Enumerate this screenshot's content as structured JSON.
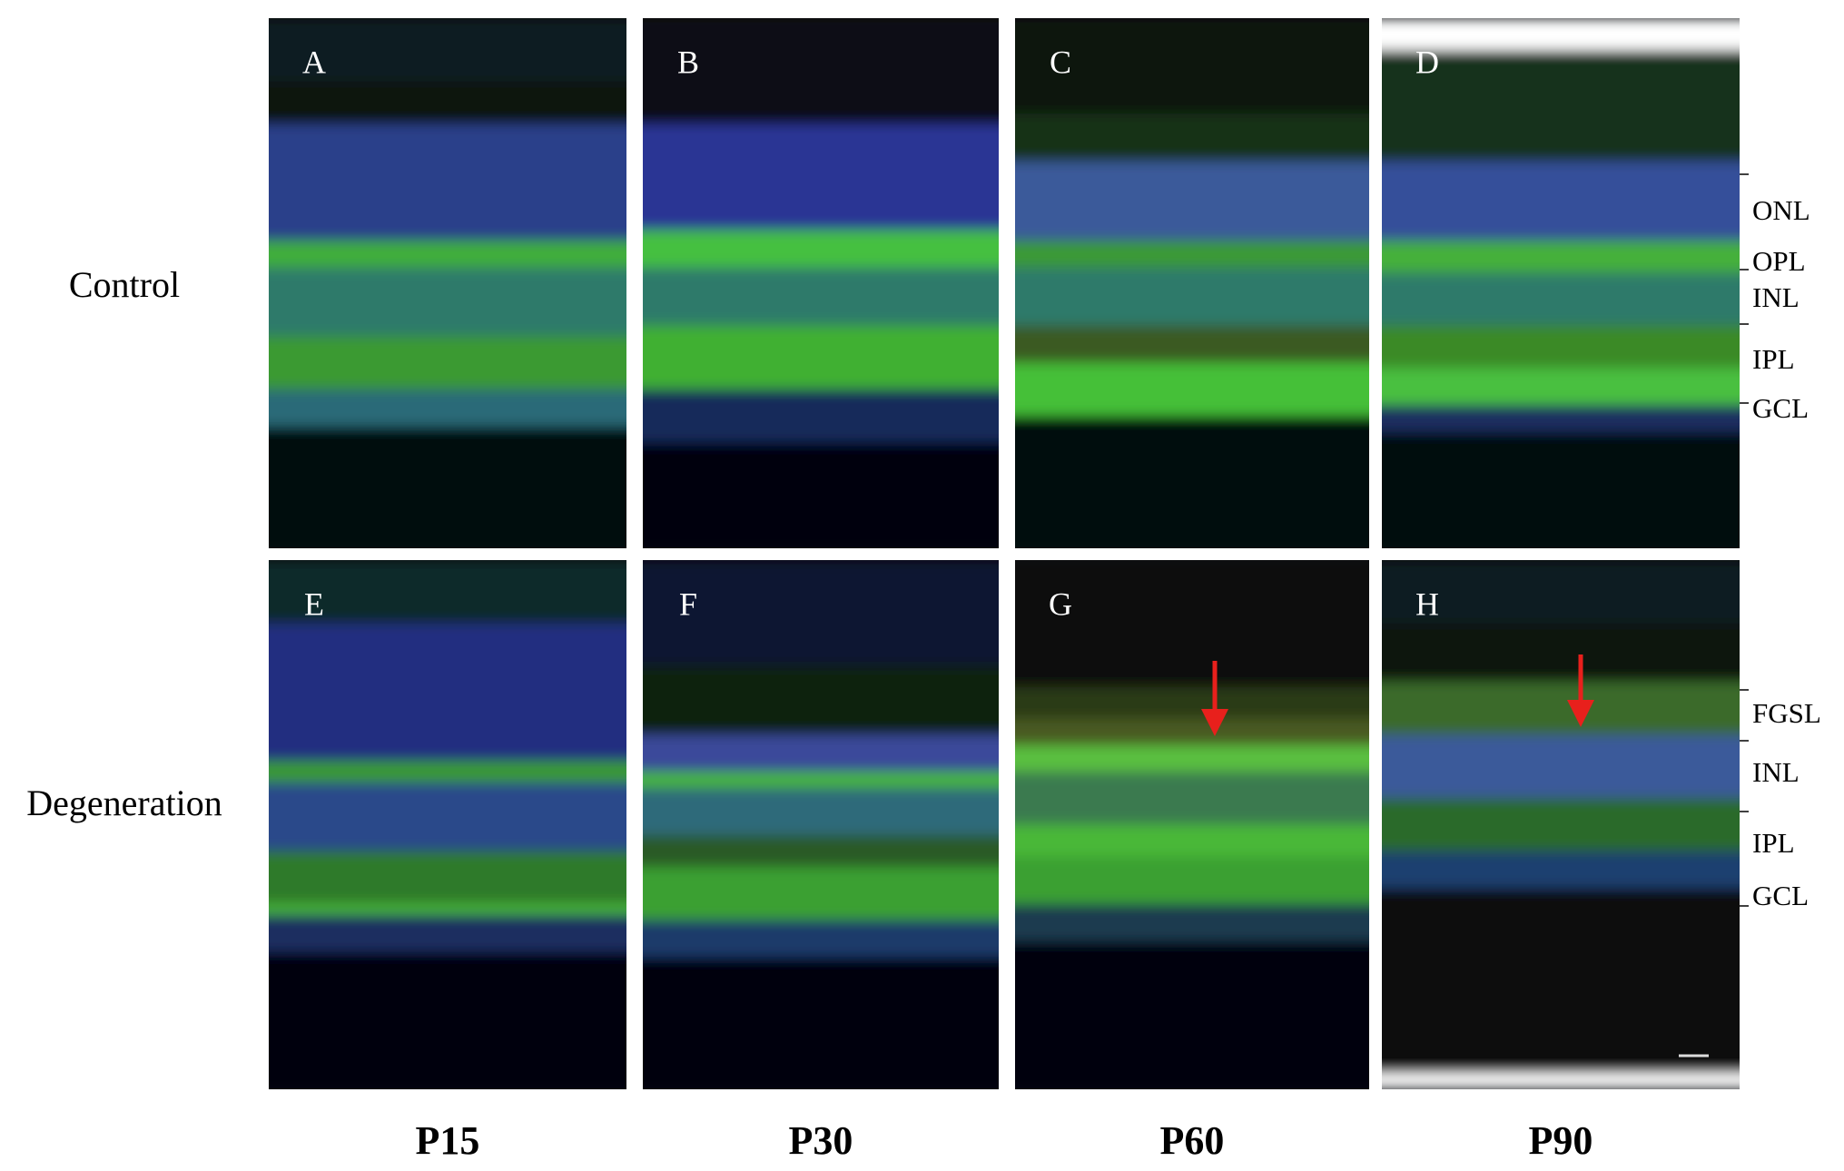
{
  "row_labels": [
    "Control",
    "Degeneration"
  ],
  "column_labels": [
    "P15",
    "P30",
    "P60",
    "P90"
  ],
  "panels": [
    "A",
    "B",
    "C",
    "D",
    "E",
    "F",
    "G",
    "H"
  ],
  "layer_labels": {
    "control": [
      "ONL",
      "OPL",
      "INL",
      "IPL",
      "GCL"
    ],
    "degeneration": [
      "FGSL",
      "INL",
      "IPL",
      "GCL"
    ]
  }
}
